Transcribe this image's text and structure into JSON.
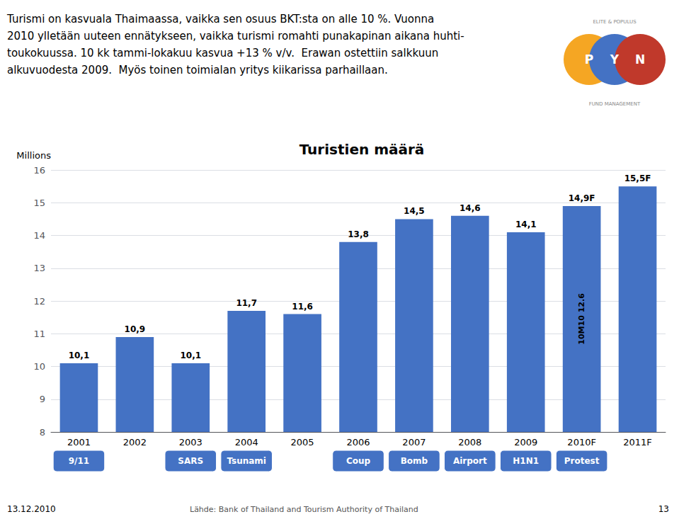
{
  "chart_data": {
    "type": "bar",
    "title": "Turistien määrä",
    "subtitle": "Turismi on kasvuala Thaimaassa, vaikka sen osuus BKT:sta on alle 10 %. Vuonna\n2010 ylletään uuteen ennätykseen, vaikka turismi romahti punakapinan aikana huhti-\ntoukokuussa. 10 kk tammi-lokakuu kasvua +13 % v/v.  Erawan ostettiin salkkuun\nalkuvuodesta 2009.  Myös toinen toimialan yritys kiikarissa parhaillaan.",
    "ylabel": "Millions",
    "categories": [
      "2001",
      "2002",
      "2003",
      "2004",
      "2005",
      "2006",
      "2007",
      "2008",
      "2009",
      "2010F",
      "2011F"
    ],
    "values": [
      10.1,
      10.9,
      10.1,
      11.7,
      11.6,
      13.8,
      14.5,
      14.6,
      14.1,
      14.9,
      15.5
    ],
    "value_labels": [
      "10,1",
      "10,9",
      "10,1",
      "11,7",
      "11,6",
      "13,8",
      "14,5",
      "14,6",
      "14,1",
      "14,9F",
      "15,5F"
    ],
    "color": "#4472C4",
    "ylim": [
      8,
      16
    ],
    "yticks": [
      8,
      9,
      10,
      11,
      12,
      13,
      14,
      15,
      16
    ],
    "grid": true,
    "data_labels": true,
    "annotations": [
      {
        "text": "10M10 12.6",
        "x": "2010F"
      }
    ],
    "events": {
      "color": "#4472C4",
      "text_color": "#FFFFFF",
      "labels": [
        {
          "text": "9/11",
          "x": "2001"
        },
        {
          "text": "SARS",
          "x": "2003"
        },
        {
          "text": "Tsunami",
          "x": "2004"
        },
        {
          "text": "Coup",
          "x": "2006"
        },
        {
          "text": "Bomb",
          "x": "2007"
        },
        {
          "text": "Airport",
          "x": "2008"
        },
        {
          "text": "H1N1",
          "x": "2009"
        },
        {
          "text": "Protest",
          "x": "2010F"
        }
      ]
    },
    "footer": [
      "13.12.2010",
      "Lähde: Bank of Thailand and Tourism Authority of Thailand",
      "13"
    ],
    "logo": {
      "top_text": "ELITE & POPULUS",
      "letters": [
        "P",
        "Y",
        "N"
      ],
      "colors": [
        "#F5A623",
        "#4472C4",
        "#C0392B"
      ],
      "bottom_text": "FUND MANAGEMENT"
    }
  }
}
